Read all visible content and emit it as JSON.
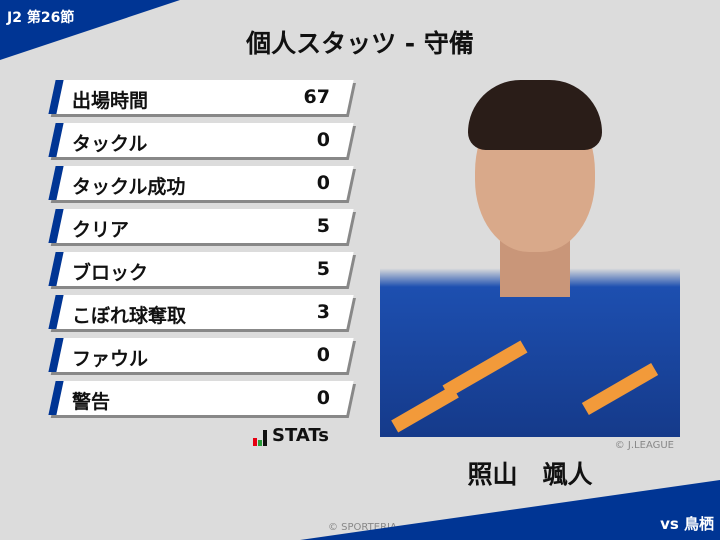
{
  "header": {
    "round": "J2 第26節",
    "title": "個人スタッツ - 守備",
    "opponent": "vs 鳥栖"
  },
  "stats": [
    {
      "label": "出場時間",
      "value": "67"
    },
    {
      "label": "タックル",
      "value": "0"
    },
    {
      "label": "タックル成功",
      "value": "0"
    },
    {
      "label": "クリア",
      "value": "5"
    },
    {
      "label": "ブロック",
      "value": "5"
    },
    {
      "label": "こぼれ球奪取",
      "value": "3"
    },
    {
      "label": "ファウル",
      "value": "0"
    },
    {
      "label": "警告",
      "value": "0"
    }
  ],
  "stats_logo": "STATs",
  "player": {
    "name": "照山　颯人",
    "photo_credit": "© J.LEAGUE"
  },
  "footer": {
    "credit": "© SPORTERIA"
  },
  "colors": {
    "accent": "#003594",
    "background": "#dcdcdc",
    "jersey_orange": "#f29a3a"
  }
}
